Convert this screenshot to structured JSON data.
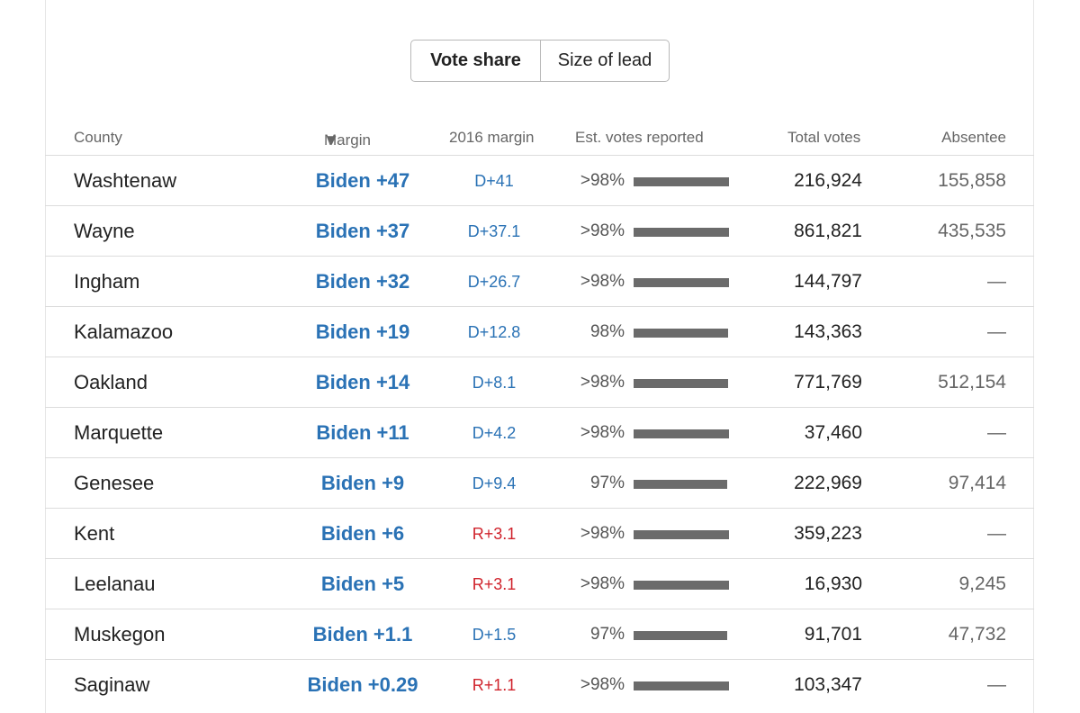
{
  "toggle": {
    "vote_share_label": "Vote share",
    "size_of_lead_label": "Size of lead",
    "selected": "Vote share"
  },
  "table": {
    "columns": {
      "county": "County",
      "margin": "Margin",
      "sort_indicator": "▼",
      "margin_2016": "2016 margin",
      "est_reported": "Est. votes reported",
      "total_votes": "Total votes",
      "absentee": "Absentee"
    },
    "rows": [
      {
        "county": "Washtenaw",
        "margin": "Biden +47",
        "margin_2016": "D+41",
        "party_2016": "D",
        "reported": ">98%",
        "reported_fraction": 0.99,
        "total": "216,924",
        "absentee": "155,858"
      },
      {
        "county": "Wayne",
        "margin": "Biden +37",
        "margin_2016": "D+37.1",
        "party_2016": "D",
        "reported": ">98%",
        "reported_fraction": 0.99,
        "total": "861,821",
        "absentee": "435,535"
      },
      {
        "county": "Ingham",
        "margin": "Biden +32",
        "margin_2016": "D+26.7",
        "party_2016": "D",
        "reported": ">98%",
        "reported_fraction": 0.99,
        "total": "144,797",
        "absentee": "—"
      },
      {
        "county": "Kalamazoo",
        "margin": "Biden +19",
        "margin_2016": "D+12.8",
        "party_2016": "D",
        "reported": "98%",
        "reported_fraction": 0.98,
        "total": "143,363",
        "absentee": "—"
      },
      {
        "county": "Oakland",
        "margin": "Biden +14",
        "margin_2016": "D+8.1",
        "party_2016": "D",
        "reported": ">98%",
        "reported_fraction": 0.98,
        "total": "771,769",
        "absentee": "512,154"
      },
      {
        "county": "Marquette",
        "margin": "Biden +11",
        "margin_2016": "D+4.2",
        "party_2016": "D",
        "reported": ">98%",
        "reported_fraction": 0.99,
        "total": "37,460",
        "absentee": "—"
      },
      {
        "county": "Genesee",
        "margin": "Biden +9",
        "margin_2016": "D+9.4",
        "party_2016": "D",
        "reported": "97%",
        "reported_fraction": 0.97,
        "total": "222,969",
        "absentee": "97,414"
      },
      {
        "county": "Kent",
        "margin": "Biden +6",
        "margin_2016": "R+3.1",
        "party_2016": "R",
        "reported": ">98%",
        "reported_fraction": 0.99,
        "total": "359,223",
        "absentee": "—"
      },
      {
        "county": "Leelanau",
        "margin": "Biden +5",
        "margin_2016": "R+3.1",
        "party_2016": "R",
        "reported": ">98%",
        "reported_fraction": 0.99,
        "total": "16,930",
        "absentee": "9,245"
      },
      {
        "county": "Muskegon",
        "margin": "Biden +1.1",
        "margin_2016": "D+1.5",
        "party_2016": "D",
        "reported": "97%",
        "reported_fraction": 0.97,
        "total": "91,701",
        "absentee": "47,732"
      },
      {
        "county": "Saginaw",
        "margin": "Biden +0.29",
        "margin_2016": "R+1.1",
        "party_2016": "R",
        "reported": ">98%",
        "reported_fraction": 0.99,
        "total": "103,347",
        "absentee": "—"
      }
    ]
  },
  "colors": {
    "democrat": "#2a72b5",
    "republican": "#d0232c",
    "bar": "#6b6b6b"
  }
}
